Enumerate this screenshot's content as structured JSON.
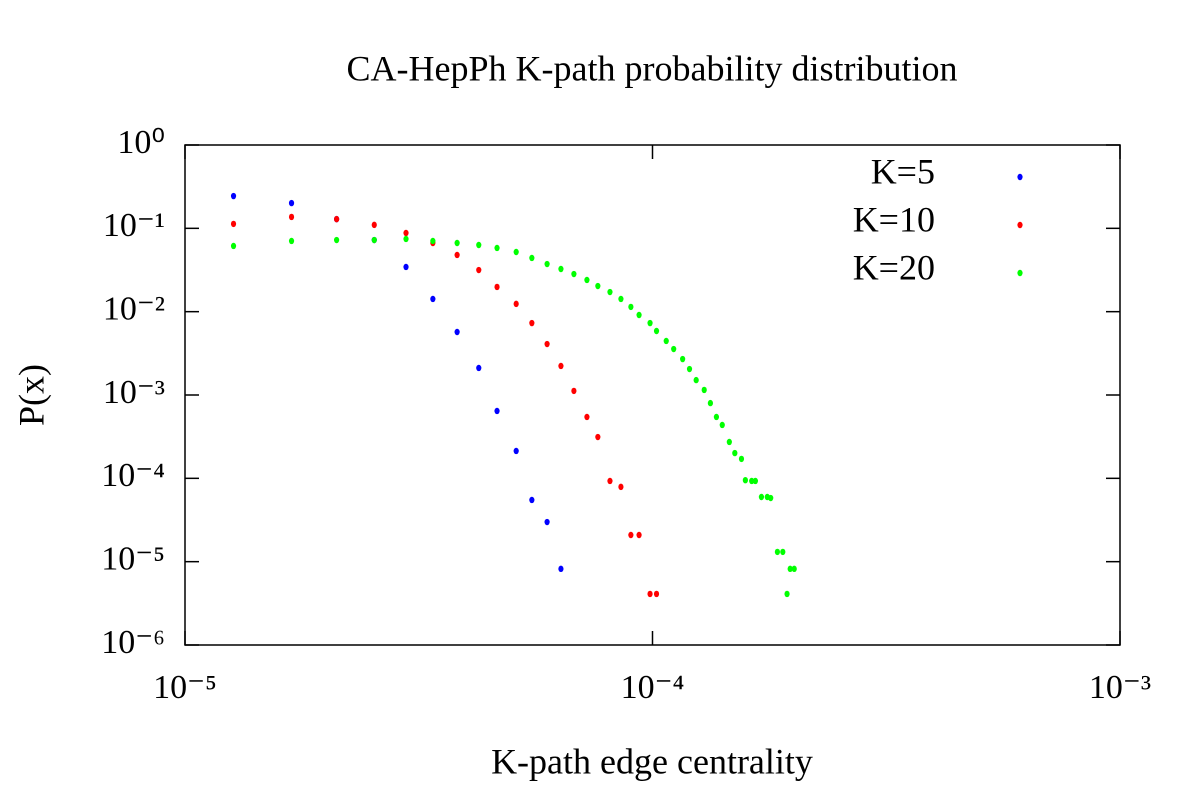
{
  "chart_data": {
    "type": "scatter",
    "title": "CA-HepPh K-path probability distribution",
    "x_label": "K-path edge centrality",
    "y_label": "P(x)",
    "xscale": "log",
    "yscale": "log",
    "legend": "upper right",
    "xlim": [
      1e-05,
      0.001
    ],
    "xticks": [
      {
        "value": 1e-05,
        "label": "10⁻⁵"
      },
      {
        "value": 0.0001,
        "label": "10⁻⁴"
      },
      {
        "value": 0.001,
        "label": "10⁻³"
      }
    ],
    "ylim": [
      1e-06,
      1
    ],
    "yticks": [
      {
        "value": 1e-06,
        "label": "10⁻⁶"
      },
      {
        "value": 1e-05,
        "label": "10⁻⁵"
      },
      {
        "value": 0.0001,
        "label": "10⁻⁴"
      },
      {
        "value": 0.001,
        "label": "10⁻³"
      },
      {
        "value": 0.01,
        "label": "10⁻²"
      },
      {
        "value": 0.1,
        "label": "10⁻¹"
      },
      {
        "value": 1,
        "label": "10⁰"
      }
    ],
    "series": [
      {
        "name": "K=5",
        "color": "#0000ff",
        "x": [
          1.27e-05,
          1.69e-05,
          2.11e-05,
          2.54e-05,
          2.97e-05,
          3.39e-05,
          3.82e-05,
          4.25e-05,
          4.65e-05,
          5.11e-05,
          5.52e-05,
          5.95e-05,
          6.37e-05
        ],
        "values": [
          0.244,
          0.201,
          0.129,
          0.0724,
          0.0344,
          0.0142,
          0.0057,
          0.00211,
          0.000643,
          0.000213,
          5.5e-05,
          2.99e-05,
          8.2e-06
        ]
      },
      {
        "name": "K=10",
        "color": "#ff0000",
        "x": [
          1.27e-05,
          1.69e-05,
          2.11e-05,
          2.54e-05,
          2.97e-05,
          3.39e-05,
          3.82e-05,
          4.25e-05,
          4.65e-05,
          5.11e-05,
          5.52e-05,
          5.95e-05,
          6.37e-05,
          6.79e-05,
          7.24e-05,
          7.64e-05,
          8.11e-05,
          8.56e-05,
          8.99e-05,
          9.36e-05,
          9.88e-05,
          0.000102
        ],
        "values": [
          0.113,
          0.137,
          0.129,
          0.11,
          0.0879,
          0.0667,
          0.0479,
          0.0316,
          0.0198,
          0.0124,
          0.0073,
          0.00409,
          0.00223,
          0.00112,
          0.000545,
          0.000313,
          9.3e-05,
          7.9e-05,
          2.09e-05,
          2.09e-05,
          4.1e-06,
          4.1e-06
        ]
      },
      {
        "name": "K=20",
        "color": "#00ff00",
        "x": [
          1.27e-05,
          1.69e-05,
          2.11e-05,
          2.54e-05,
          2.97e-05,
          3.39e-05,
          3.82e-05,
          4.25e-05,
          4.65e-05,
          5.11e-05,
          5.52e-05,
          5.95e-05,
          6.37e-05,
          6.79e-05,
          7.24e-05,
          7.64e-05,
          8.11e-05,
          8.56e-05,
          8.99e-05,
          9.36e-05,
          9.88e-05,
          0.000102,
          0.000107,
          0.000111,
          0.000116,
          0.00012,
          0.000124,
          0.000129,
          0.000133,
          0.000137,
          0.000141,
          0.000146,
          0.00015,
          0.000155,
          0.000158,
          0.000163,
          0.000166,
          0.000171,
          0.000176,
          0.000179,
          0.000185,
          0.00019,
          0.000194,
          0.000197,
          0.000201
        ],
        "values": [
          0.0614,
          0.0705,
          0.0724,
          0.0724,
          0.0745,
          0.0705,
          0.0667,
          0.0631,
          0.0581,
          0.052,
          0.0441,
          0.0373,
          0.0325,
          0.0283,
          0.024,
          0.0203,
          0.0172,
          0.0142,
          0.0114,
          0.00912,
          0.0073,
          0.00586,
          0.00445,
          0.00356,
          0.0027,
          0.00205,
          0.00151,
          0.00115,
          0.0008,
          0.000545,
          0.000437,
          0.000273,
          0.000201,
          0.000171,
          9.5e-05,
          9.3e-05,
          9.3e-05,
          5.97e-05,
          5.97e-05,
          5.8e-05,
          1.31e-05,
          1.31e-05,
          4.1e-06,
          8.2e-06,
          8.2e-06
        ]
      }
    ]
  }
}
